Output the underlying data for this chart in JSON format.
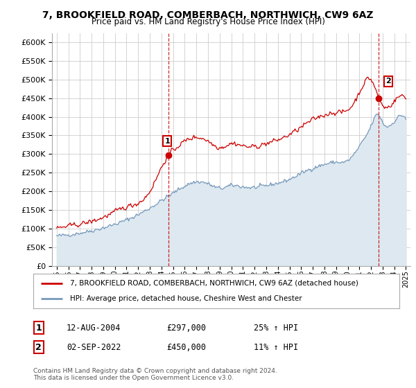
{
  "title": "7, BROOKFIELD ROAD, COMBERBACH, NORTHWICH, CW9 6AZ",
  "subtitle": "Price paid vs. HM Land Registry's House Price Index (HPI)",
  "legend_line1": "7, BROOKFIELD ROAD, COMBERBACH, NORTHWICH, CW9 6AZ (detached house)",
  "legend_line2": "HPI: Average price, detached house, Cheshire West and Chester",
  "sale1_date": "12-AUG-2004",
  "sale1_price": "£297,000",
  "sale1_hpi": "25% ↑ HPI",
  "sale2_date": "02-SEP-2022",
  "sale2_price": "£450,000",
  "sale2_hpi": "11% ↑ HPI",
  "footer": "Contains HM Land Registry data © Crown copyright and database right 2024.\nThis data is licensed under the Open Government Licence v3.0.",
  "ylim": [
    0,
    625000
  ],
  "yticks": [
    0,
    50000,
    100000,
    150000,
    200000,
    250000,
    300000,
    350000,
    400000,
    450000,
    500000,
    550000,
    600000
  ],
  "sale1_year": 2004.6,
  "sale1_value": 297000,
  "sale2_year": 2022.67,
  "sale2_value": 450000,
  "red_color": "#cc0000",
  "blue_color": "#7799bb",
  "blue_fill": "#dde8f0",
  "background_color": "#ffffff",
  "grid_color": "#cccccc",
  "annotation_color": "#cc0000"
}
